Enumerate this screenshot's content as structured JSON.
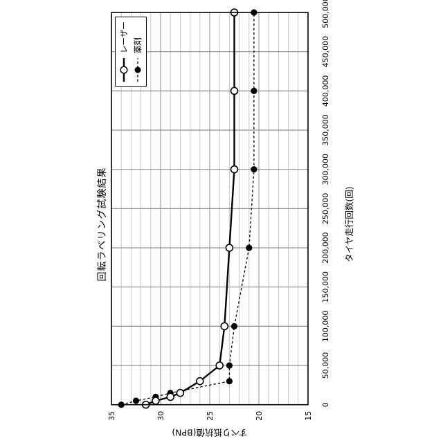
{
  "figure": {
    "orientation": "rotated-90-ccw",
    "background": "#ffffff"
  },
  "chart_data": {
    "type": "line",
    "title": "回転ラベリング試験結果",
    "xlabel": "タイヤ走行回数(回)",
    "ylabel": "すべり抵抗値(BPN)",
    "xlim": [
      0,
      500000
    ],
    "ylim": [
      15,
      35
    ],
    "x_tick_interval": 50000,
    "x_tick_labels": [
      "0",
      "50,000",
      "100,000",
      "150,000",
      "200,000",
      "250,000",
      "300,000",
      "350,000",
      "400,000",
      "450,000",
      "500,000"
    ],
    "y_ticks": [
      35,
      30,
      25,
      20,
      15
    ],
    "y_minor_interval": 1,
    "grid": "x major every 50,000; y minor every 1 BPN, major every 5 BPN",
    "legend_position": "top-right inside plot",
    "x": [
      0,
      5000,
      10000,
      15000,
      30000,
      50000,
      100000,
      200000,
      300000,
      400000,
      500000
    ],
    "series": [
      {
        "name": "レーザー",
        "line": "solid",
        "marker": "open-circle",
        "values": [
          31.5,
          30.5,
          29,
          28,
          26,
          24,
          23.5,
          23,
          22.5,
          22.5,
          22.5
        ]
      },
      {
        "name": "薬剤",
        "line": "dashed",
        "marker": "filled-circle",
        "values": [
          34,
          32.5,
          30.5,
          29,
          23,
          23,
          22.5,
          21,
          20.5,
          20.5,
          20.5
        ]
      }
    ],
    "colors": {
      "line": "#000000",
      "grid_major": "#8f8f8f",
      "grid_minor": "#c9c9c9",
      "border": "#000000",
      "background": "#ffffff"
    }
  }
}
